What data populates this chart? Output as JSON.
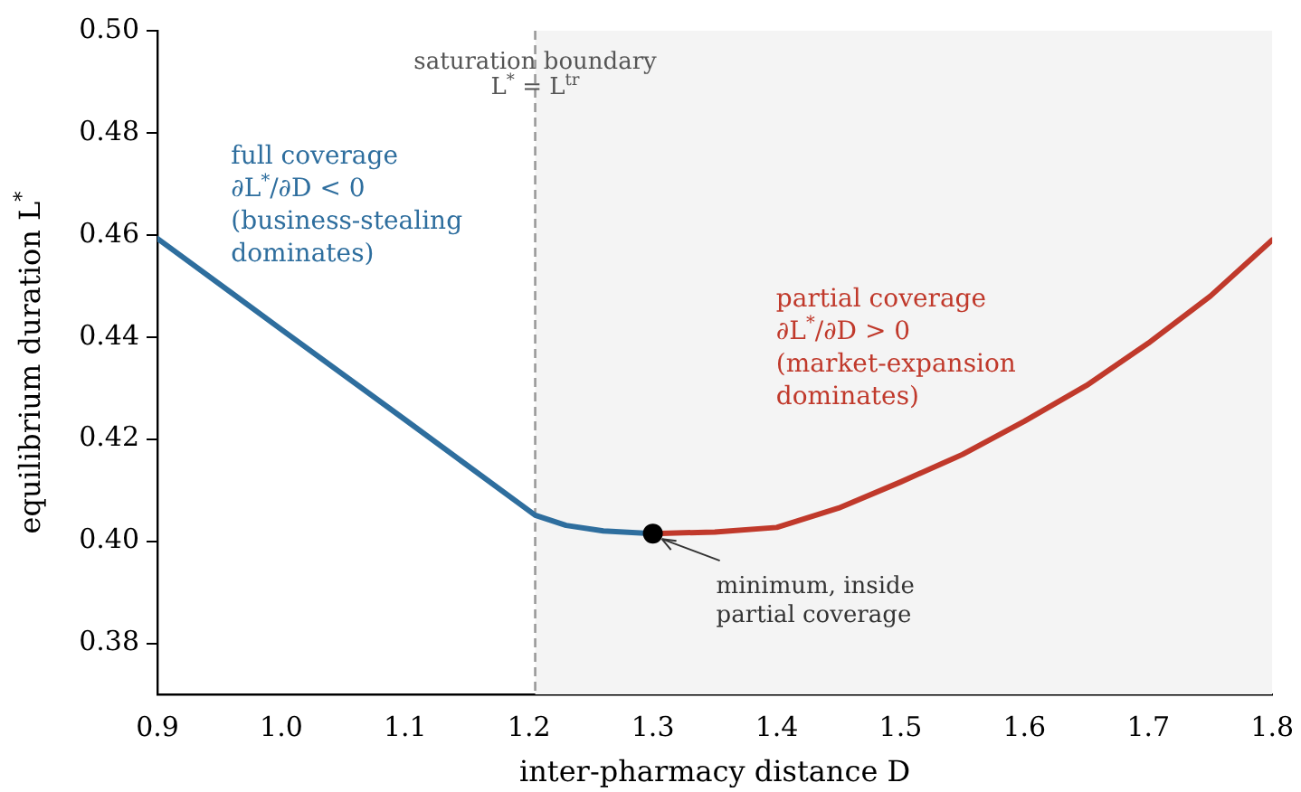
{
  "chart_data": {
    "type": "line",
    "xlabel": "inter-pharmacy distance D",
    "ylabel": "equilibrium duration L$^{*}$",
    "xlim": [
      0.9,
      1.8
    ],
    "xticks": [
      0.9,
      {
        "value": 1,
        "label": "1.0"
      },
      1.1,
      1.2,
      1.3,
      1.4,
      1.5,
      1.6,
      1.7,
      1.8
    ],
    "ylim": [
      0.37,
      0.5
    ],
    "yticks": [
      0.38,
      {
        "value": 0.4,
        "label": "0.40"
      },
      0.42,
      0.44,
      0.46,
      0.48,
      {
        "value": 0.5,
        "label": "0.50"
      }
    ],
    "grid": false,
    "legend": false,
    "series": [
      {
        "color": "#2e6e9e",
        "x": [
          0.9,
          1.0,
          1.1,
          1.205,
          1.23,
          1.26,
          1.3
        ],
        "values": [
          0.4593,
          0.4415,
          0.4238,
          0.4051,
          0.4031,
          0.402,
          0.4015
        ]
      },
      {
        "color": "#c0392b",
        "x": [
          1.3,
          1.35,
          1.4,
          1.45,
          1.5,
          1.55,
          1.6,
          1.65,
          1.7,
          1.75,
          1.8
        ],
        "values": [
          0.4015,
          0.4018,
          0.4027,
          0.4065,
          0.4116,
          0.417,
          0.4235,
          0.4305,
          0.4388,
          0.448,
          0.459
        ]
      },
      {
        "type": "scatter",
        "color": "#000000",
        "x": [
          1.3
        ],
        "values": [
          0.4015
        ],
        "marker": "circle"
      }
    ],
    "bands": [
      {
        "axis": "x",
        "from": 1.205,
        "to": 1.8,
        "color": "#f4f4f4"
      }
    ],
    "ref_lines": [
      {
        "axis": "x",
        "value": 1.205,
        "label": "saturation boundary\nL$^{*}$ = L$^{tr}$",
        "color": "#999999",
        "line_style": "dashed"
      }
    ],
    "annotations": [
      "full coverage\n∂L$^{*}$/∂D < 0\n(business-stealing\ndominates)",
      "partial coverage\n∂L$^{*}$/∂D > 0\n(market-expansion\ndominates)",
      {
        "text": "minimum, inside\npartial coverage",
        "x": 1.3,
        "y": 0.4015
      }
    ]
  }
}
